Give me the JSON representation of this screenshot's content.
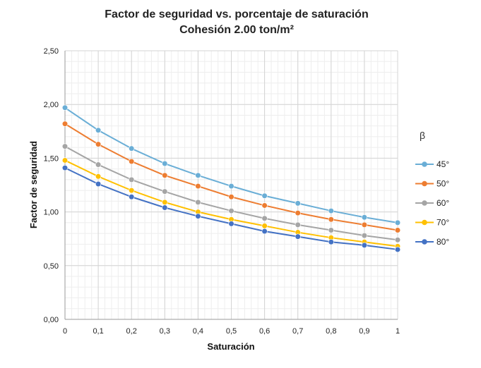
{
  "chart_data": {
    "type": "line",
    "title": "Factor de seguridad vs. porcentaje de saturación",
    "subtitle": "Cohesión 2.00 ton/m²",
    "xlabel": "Saturación",
    "ylabel": "Factor de seguridad",
    "x": [
      0,
      0.1,
      0.2,
      0.3,
      0.4,
      0.5,
      0.6,
      0.7,
      0.8,
      0.9,
      1
    ],
    "x_tick_labels": [
      "0",
      "0,1",
      "0,2",
      "0,3",
      "0,4",
      "0,5",
      "0,6",
      "0,7",
      "0,8",
      "0,9",
      "1"
    ],
    "y_tick_values": [
      0,
      0.5,
      1,
      1.5,
      2,
      2.5
    ],
    "y_tick_labels": [
      "0,00",
      "0,50",
      "1,00",
      "1,50",
      "2,00",
      "2,50"
    ],
    "xlim": [
      0,
      1
    ],
    "ylim": [
      0,
      2.5
    ],
    "grid": "on (major and minor)",
    "legend_title": "β",
    "legend_position": "right",
    "series": [
      {
        "name": "45°",
        "color": "#6aaed6",
        "values": [
          1.97,
          1.76,
          1.59,
          1.45,
          1.34,
          1.24,
          1.15,
          1.08,
          1.01,
          0.95,
          0.9
        ]
      },
      {
        "name": "50°",
        "color": "#ed7d31",
        "values": [
          1.82,
          1.63,
          1.47,
          1.34,
          1.24,
          1.14,
          1.06,
          0.99,
          0.93,
          0.88,
          0.83
        ]
      },
      {
        "name": "60°",
        "color": "#a5a5a5",
        "values": [
          1.61,
          1.44,
          1.3,
          1.19,
          1.09,
          1.01,
          0.94,
          0.88,
          0.83,
          0.78,
          0.74
        ]
      },
      {
        "name": "70°",
        "color": "#ffc000",
        "values": [
          1.48,
          1.33,
          1.2,
          1.09,
          1.0,
          0.93,
          0.87,
          0.81,
          0.76,
          0.72,
          0.68
        ]
      },
      {
        "name": "80°",
        "color": "#4472c4",
        "values": [
          1.41,
          1.26,
          1.14,
          1.04,
          0.96,
          0.89,
          0.82,
          0.77,
          0.72,
          0.69,
          0.65
        ]
      }
    ]
  }
}
